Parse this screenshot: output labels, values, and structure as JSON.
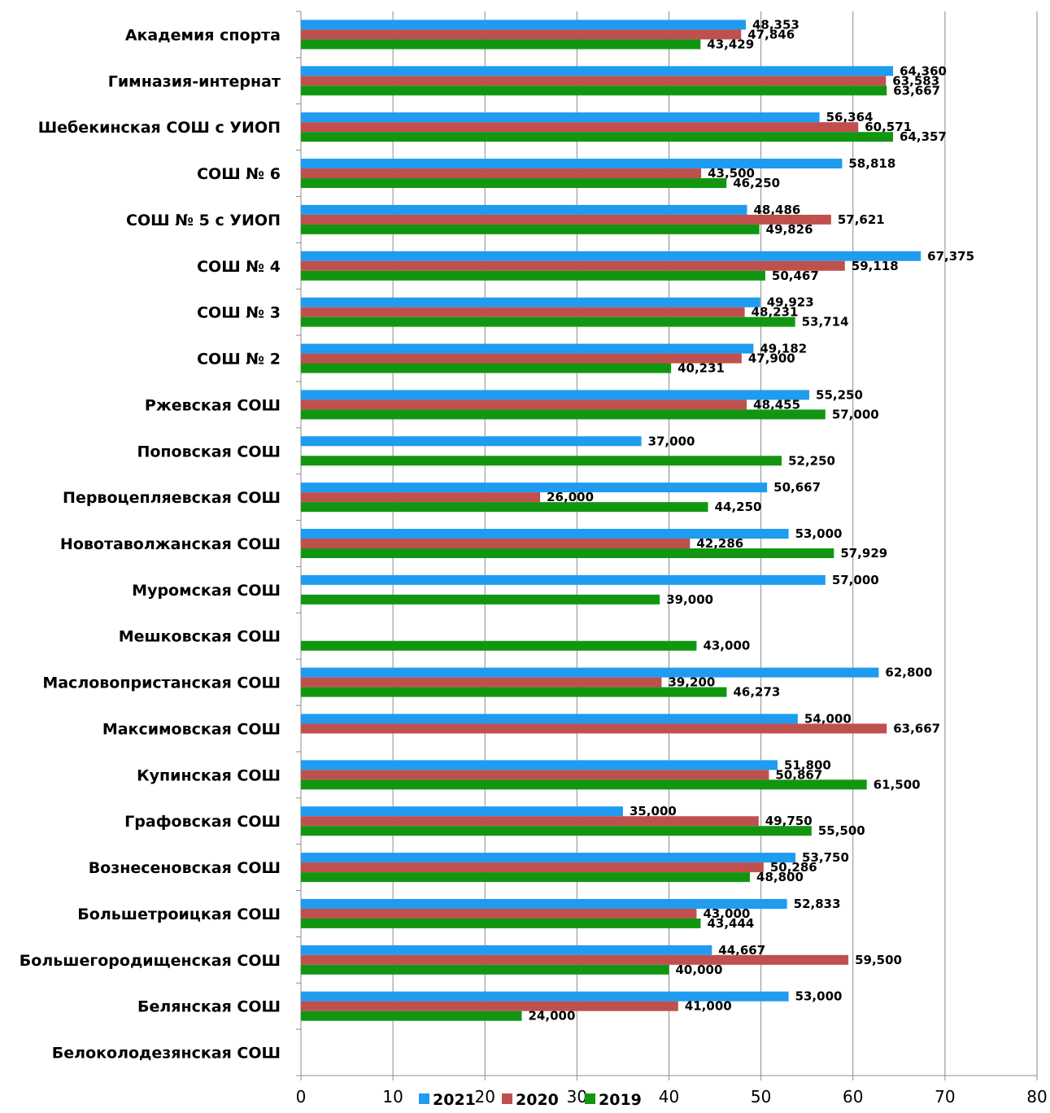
{
  "chart_data": {
    "type": "bar",
    "orientation": "horizontal",
    "categories": [
      "Академия спорта",
      "Гимназия-интернат",
      "Шебекинская СОШ с УИОП",
      "СОШ № 6",
      "СОШ № 5 с УИОП",
      "СОШ № 4",
      "СОШ № 3",
      "СОШ № 2",
      "Ржевская СОШ",
      "Поповская СОШ",
      "Первоцепляевская СОШ",
      "Новотаволжанская СОШ",
      "Муромская СОШ",
      "Мешковская СОШ",
      "Масловопристанская СОШ",
      "Максимовская СОШ",
      "Купинская СОШ",
      "Графовская СОШ",
      "Вознесеновская СОШ",
      "Большетроицкая СОШ",
      "Большегородищенская СОШ",
      "Белянская СОШ",
      "Белоколодезянская СОШ"
    ],
    "series": [
      {
        "name": "2021",
        "color": "#1f9bf0",
        "values": [
          48.353,
          64.36,
          56.364,
          58.818,
          48.486,
          67.375,
          49.923,
          49.182,
          55.25,
          37.0,
          50.667,
          53.0,
          57.0,
          null,
          62.8,
          54.0,
          51.8,
          35.0,
          53.75,
          52.833,
          44.667,
          53.0,
          null
        ],
        "labels": [
          "48,353",
          "64,360",
          "56,364",
          "58,818",
          "48,486",
          "67,375",
          "49,923",
          "49,182",
          "55,250",
          "37,000",
          "50,667",
          "53,000",
          "57,000",
          null,
          "62,800",
          "54,000",
          "51,800",
          "35,000",
          "53,750",
          "52,833",
          "44,667",
          "53,000",
          null
        ]
      },
      {
        "name": "2020",
        "color": "#c0504d",
        "values": [
          47.846,
          63.583,
          60.571,
          43.5,
          57.621,
          59.118,
          48.231,
          47.9,
          48.455,
          null,
          26.0,
          42.286,
          null,
          null,
          39.2,
          63.667,
          50.867,
          49.75,
          50.286,
          43.0,
          59.5,
          41.0,
          null
        ],
        "labels": [
          "47,846",
          "63,583",
          "60,571",
          "43,500",
          "57,621",
          "59,118",
          "48,231",
          "47,900",
          "48,455",
          null,
          "26,000",
          "42,286",
          null,
          null,
          "39,200",
          "63,667",
          "50,867",
          "49,750",
          "50,286",
          "43,000",
          "59,500",
          "41,000",
          null
        ]
      },
      {
        "name": "2019",
        "color": "#129612",
        "values": [
          43.429,
          63.667,
          64.357,
          46.25,
          49.826,
          50.467,
          53.714,
          40.231,
          57.0,
          52.25,
          44.25,
          57.929,
          39.0,
          43.0,
          46.273,
          null,
          61.5,
          55.5,
          48.8,
          43.444,
          40.0,
          24.0,
          null
        ],
        "labels": [
          "43,429",
          "63,667",
          "64,357",
          "46,250",
          "49,826",
          "50,467",
          "53,714",
          "40,231",
          "57,000",
          "52,250",
          "44,250",
          "57,929",
          "39,000",
          "43,000",
          "46,273",
          null,
          "61,500",
          "55,500",
          "48,800",
          "43,444",
          "40,000",
          "24,000",
          null
        ]
      }
    ],
    "x_ticks": [
      "0",
      "10",
      "20",
      "30",
      "40",
      "50",
      "60",
      "70",
      "80"
    ],
    "xlim": [
      0,
      80
    ],
    "grid": true,
    "legend_position": "bottom",
    "title": "",
    "xlabel": "",
    "ylabel": ""
  }
}
